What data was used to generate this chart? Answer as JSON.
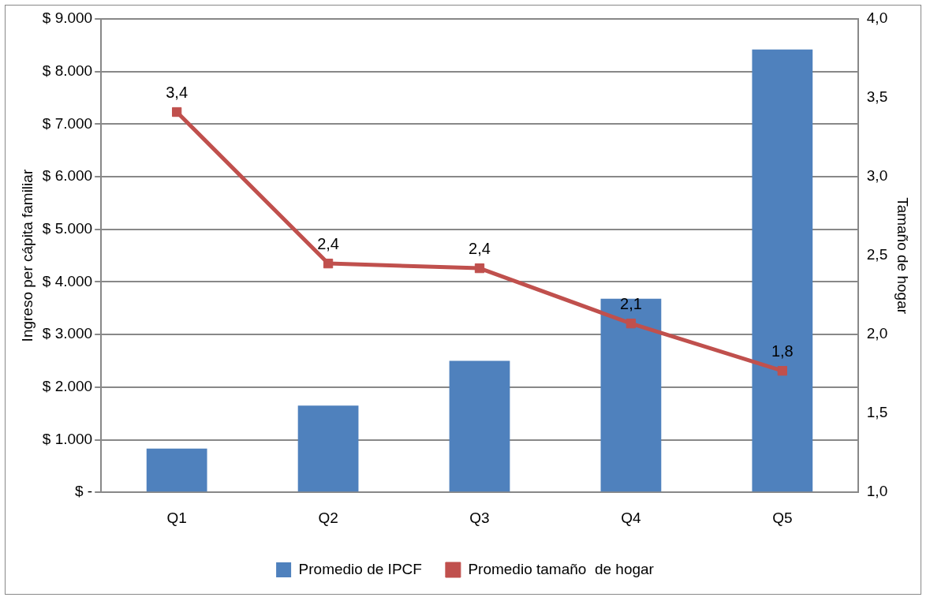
{
  "chart_data": {
    "type": "bar",
    "categories": [
      "Q1",
      "Q2",
      "Q3",
      "Q4",
      "Q5"
    ],
    "ylabel": "Ingreso per cápita familiar",
    "y2label": "Tamaño de hogar",
    "series": [
      {
        "name": "Promedio de IPCF",
        "color": "#4f81bd",
        "values": [
          830,
          1650,
          2500,
          3680,
          8420
        ]
      },
      {
        "name": "Promedio tamaño  de hogar",
        "type": "line",
        "axis": "y2",
        "color": "#c0504d",
        "marker": "square",
        "values": [
          3.41,
          2.45,
          2.42,
          2.07,
          1.77
        ],
        "value_labels": [
          "3,4",
          "2,4",
          "2,4",
          "2,1",
          "1,8"
        ]
      }
    ],
    "ylim": [
      0,
      9000
    ],
    "yticks": [
      {
        "value": 0,
        "label": "$ -"
      },
      {
        "value": 1000,
        "label": "$ 1.000"
      },
      {
        "value": 2000,
        "label": "$ 2.000"
      },
      {
        "value": 3000,
        "label": "$ 3.000"
      },
      {
        "value": 4000,
        "label": "$ 4.000"
      },
      {
        "value": 5000,
        "label": "$ 5.000"
      },
      {
        "value": 6000,
        "label": "$ 6.000"
      },
      {
        "value": 7000,
        "label": "$ 7.000"
      },
      {
        "value": 8000,
        "label": "$ 8.000"
      },
      {
        "value": 9000,
        "label": "$ 9.000"
      }
    ],
    "y2lim": [
      1,
      4
    ],
    "y2ticks": [
      {
        "value": 1,
        "label": "1,0"
      },
      {
        "value": 1.5,
        "label": "1,5"
      },
      {
        "value": 2,
        "label": "2,0"
      },
      {
        "value": 2.5,
        "label": "2,5"
      },
      {
        "value": 3,
        "label": "3,0"
      },
      {
        "value": 3.5,
        "label": "3,5"
      },
      {
        "value": 4,
        "label": "4,0"
      }
    ],
    "grid": "y",
    "legend": "bottom"
  }
}
